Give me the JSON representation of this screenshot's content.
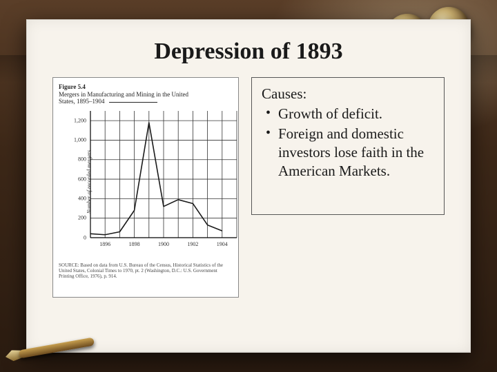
{
  "slide": {
    "title": "Depression of 1893",
    "background_color": "#f7f3ec"
  },
  "causes": {
    "heading": "Causes:",
    "items": [
      "Growth of deficit.",
      "Foreign and domestic investors lose faith in the American Markets."
    ],
    "border_color": "#555555",
    "font_size": 21
  },
  "figure": {
    "label": "Figure 5.4",
    "caption_line1": "Mergers in Manufacturing and Mining in the United",
    "caption_line2": "States, 1895–1904",
    "y_axis_label": "Number of recorded mergers",
    "source": "SOURCE: Based on data from U.S. Bureau of the Census, Historical Statistics of the United States, Colonial Times to 1970, pt. 2 (Washington, D.C.: U.S. Government Printing Office, 1976), p. 914.",
    "border_color": "#888888",
    "background_color": "#ffffff",
    "chart": {
      "type": "line",
      "x_values": [
        1895,
        1896,
        1897,
        1898,
        1899,
        1900,
        1901,
        1902,
        1903,
        1904
      ],
      "y_values": [
        40,
        30,
        60,
        280,
        1180,
        320,
        390,
        350,
        130,
        70
      ],
      "x_ticks": [
        1896,
        1898,
        1900,
        1902,
        1904
      ],
      "y_ticks": [
        0,
        200,
        400,
        600,
        800,
        1000,
        1200
      ],
      "xlim": [
        1895,
        1905
      ],
      "ylim": [
        0,
        1300
      ],
      "line_color": "#1a1a1a",
      "line_width": 1.6,
      "grid_color": "#333333",
      "grid_width": 0.8,
      "axis_color": "#000000",
      "plot_background": "#ffffff",
      "tick_fontsize": 8,
      "label_fontsize": 8
    }
  }
}
